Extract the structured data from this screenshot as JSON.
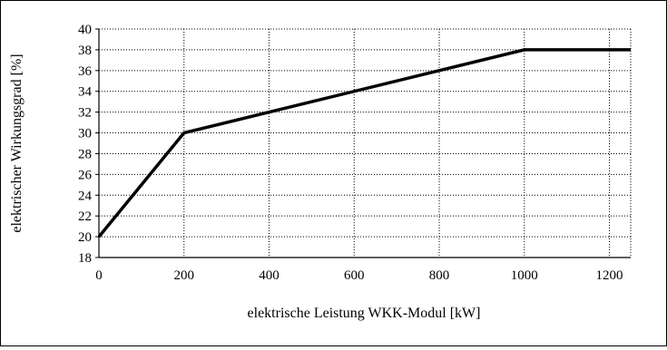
{
  "chart_data": {
    "type": "line",
    "xlabel": "elektrische Leistung WKK-Modul [kW]",
    "ylabel": "elektrischer Wirkungsgrad [%]",
    "xlim": [
      0,
      1250
    ],
    "ylim": [
      18,
      40
    ],
    "x_ticks": [
      0,
      200,
      400,
      600,
      800,
      1000,
      1200
    ],
    "y_ticks": [
      18,
      20,
      22,
      24,
      26,
      28,
      30,
      32,
      34,
      36,
      38,
      40
    ],
    "grid": "dotted, both axes",
    "legend": "none",
    "series": [
      {
        "color": "#000000",
        "x": [
          0,
          200,
          1000,
          1250
        ],
        "y": [
          20,
          30,
          38,
          38
        ]
      }
    ]
  }
}
